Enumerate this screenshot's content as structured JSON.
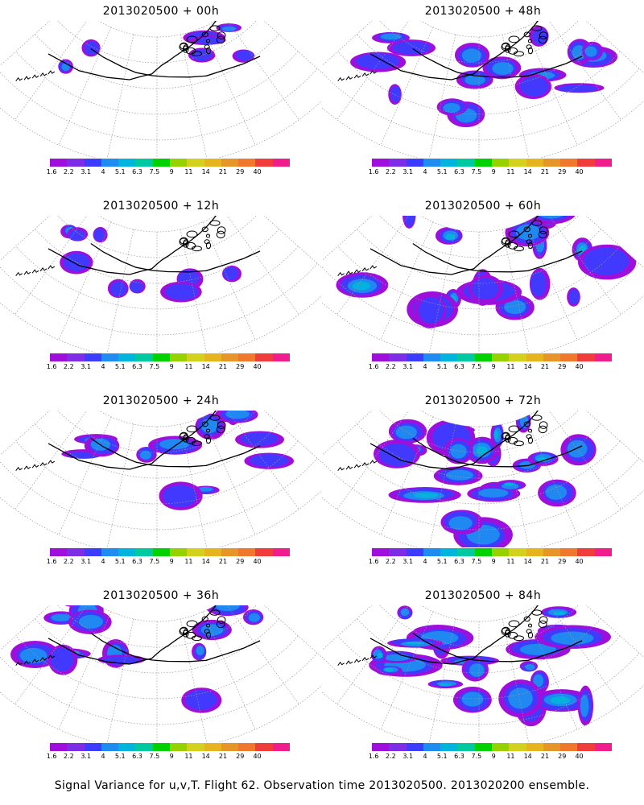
{
  "panels": [
    {
      "title": "2013020500 + 00h",
      "spread": 0.15,
      "intensity": 0.1
    },
    {
      "title": "2013020500 + 48h",
      "spread": 0.55,
      "intensity": 0.3
    },
    {
      "title": "2013020500 + 12h",
      "spread": 0.22,
      "intensity": 0.12
    },
    {
      "title": "2013020500 + 60h",
      "spread": 0.65,
      "intensity": 0.35
    },
    {
      "title": "2013020500 + 24h",
      "spread": 0.35,
      "intensity": 0.18
    },
    {
      "title": "2013020500 + 72h",
      "spread": 0.75,
      "intensity": 0.4
    },
    {
      "title": "2013020500 + 36h",
      "spread": 0.45,
      "intensity": 0.22
    },
    {
      "title": "2013020500 + 84h",
      "spread": 0.85,
      "intensity": 0.45
    }
  ],
  "legend": {
    "colors": [
      "#9f0fdc",
      "#7d2de6",
      "#3c3cff",
      "#1e8cf0",
      "#00b4dc",
      "#00c8a0",
      "#00d200",
      "#96d200",
      "#d2d21e",
      "#e6b41e",
      "#e69628",
      "#f0782d",
      "#f03c3c",
      "#f01e8c"
    ],
    "labels": [
      "1.6",
      "2.2",
      "3.1",
      "4",
      "5.1",
      "6.3",
      "7.5",
      "9",
      "11",
      "14",
      "21",
      "29",
      "40"
    ]
  },
  "caption": "Signal Variance for u,v,T. Flight 62. Observation time 2013020500. 2013020200 ensemble."
}
